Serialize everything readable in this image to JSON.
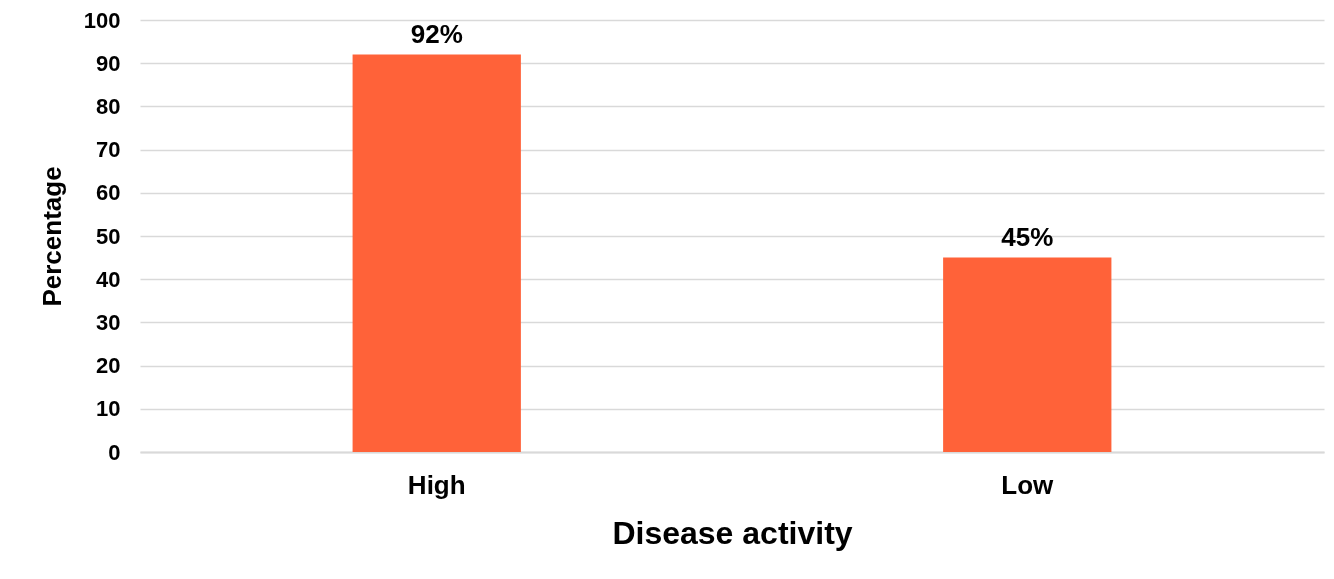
{
  "chart_data": {
    "type": "bar",
    "xlabel": "Disease activity",
    "ylabel": "Percentage",
    "categories": [
      "High",
      "Low"
    ],
    "values": [
      92,
      45
    ],
    "color": "#ff6239",
    "value_labels": [
      "92%",
      "45%"
    ],
    "ylim": [
      0,
      100
    ],
    "yticks": [
      0,
      10,
      20,
      30,
      40,
      50,
      60,
      70,
      80,
      90,
      100
    ],
    "grid": "y"
  }
}
